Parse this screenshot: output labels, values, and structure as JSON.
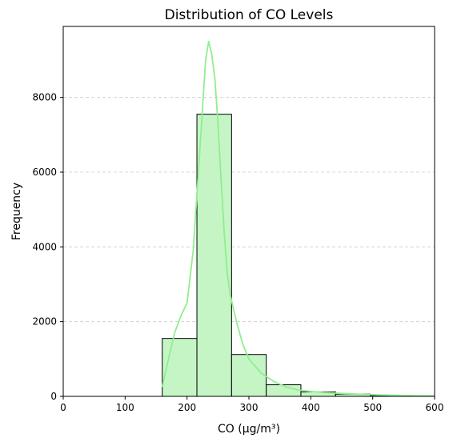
{
  "chart_data": {
    "type": "bar",
    "title": "Distribution of CO Levels",
    "xlabel": "CO (µg/m³)",
    "ylabel": "Frequency",
    "xlim": [
      0,
      600
    ],
    "ylim": [
      0,
      9900
    ],
    "x_ticks": [
      0,
      100,
      200,
      300,
      400,
      500,
      600
    ],
    "y_ticks": [
      0,
      2000,
      4000,
      6000,
      8000
    ],
    "grid": "y-dashed",
    "bins": [
      {
        "start": 160,
        "end": 216,
        "count": 1550
      },
      {
        "start": 216,
        "end": 272,
        "count": 7550
      },
      {
        "start": 272,
        "end": 328,
        "count": 1120
      },
      {
        "start": 328,
        "end": 384,
        "count": 310
      },
      {
        "start": 384,
        "end": 440,
        "count": 120
      },
      {
        "start": 440,
        "end": 496,
        "count": 60
      },
      {
        "start": 496,
        "end": 552,
        "count": 25
      },
      {
        "start": 552,
        "end": 608,
        "count": 15
      }
    ],
    "kde": {
      "x": [
        160,
        170,
        180,
        190,
        200,
        210,
        220,
        230,
        235,
        240,
        245,
        250,
        255,
        260,
        265,
        270,
        280,
        290,
        300,
        320,
        340,
        360,
        380,
        400,
        420,
        450,
        480,
        510,
        540,
        570,
        600
      ],
      "y": [
        250,
        1000,
        1700,
        2150,
        2500,
        3900,
        6400,
        9000,
        9500,
        9150,
        8500,
        7300,
        5800,
        4400,
        3300,
        2700,
        2000,
        1400,
        1000,
        620,
        400,
        250,
        170,
        130,
        105,
        80,
        55,
        40,
        28,
        18,
        12
      ]
    },
    "colors": {
      "bar_fill": "#c5f5c5",
      "bar_edge": "#000000",
      "kde_line": "#90ee90",
      "grid": "#cccccc"
    }
  }
}
